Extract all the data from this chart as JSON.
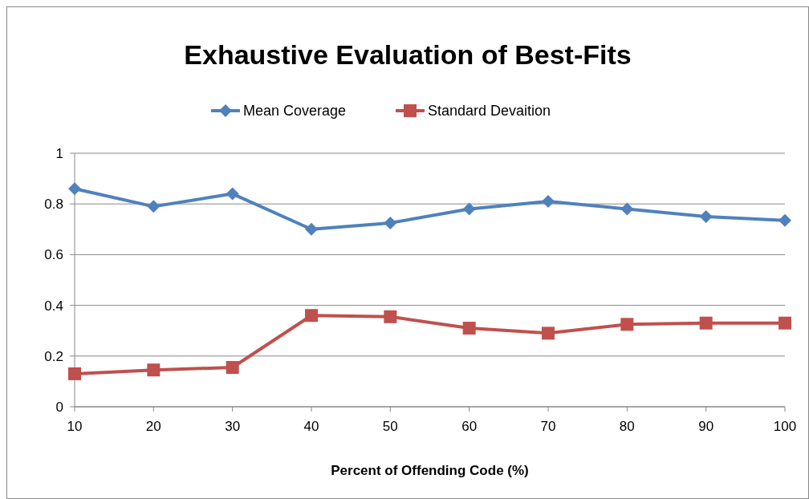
{
  "chart_data": {
    "type": "line",
    "title": "Exhaustive Evaluation of Best-Fits",
    "xlabel": "Percent of Offending Code (%)",
    "categories": [
      "10",
      "20",
      "30",
      "40",
      "50",
      "60",
      "70",
      "80",
      "90",
      "100"
    ],
    "series": [
      {
        "name": "Mean Coverage",
        "color": "#4f81bd",
        "marker": "diamond",
        "values": [
          0.86,
          0.79,
          0.84,
          0.7,
          0.725,
          0.78,
          0.81,
          0.78,
          0.75,
          0.735
        ]
      },
      {
        "name": "Standard Devaition",
        "color": "#c0504d",
        "marker": "square",
        "values": [
          0.13,
          0.145,
          0.155,
          0.36,
          0.355,
          0.31,
          0.29,
          0.325,
          0.33,
          0.33
        ]
      }
    ],
    "ylim": [
      0,
      1
    ],
    "yticks": [
      0,
      0.2,
      0.4,
      0.6,
      0.8,
      1
    ],
    "grid": "y",
    "legend": "top"
  }
}
